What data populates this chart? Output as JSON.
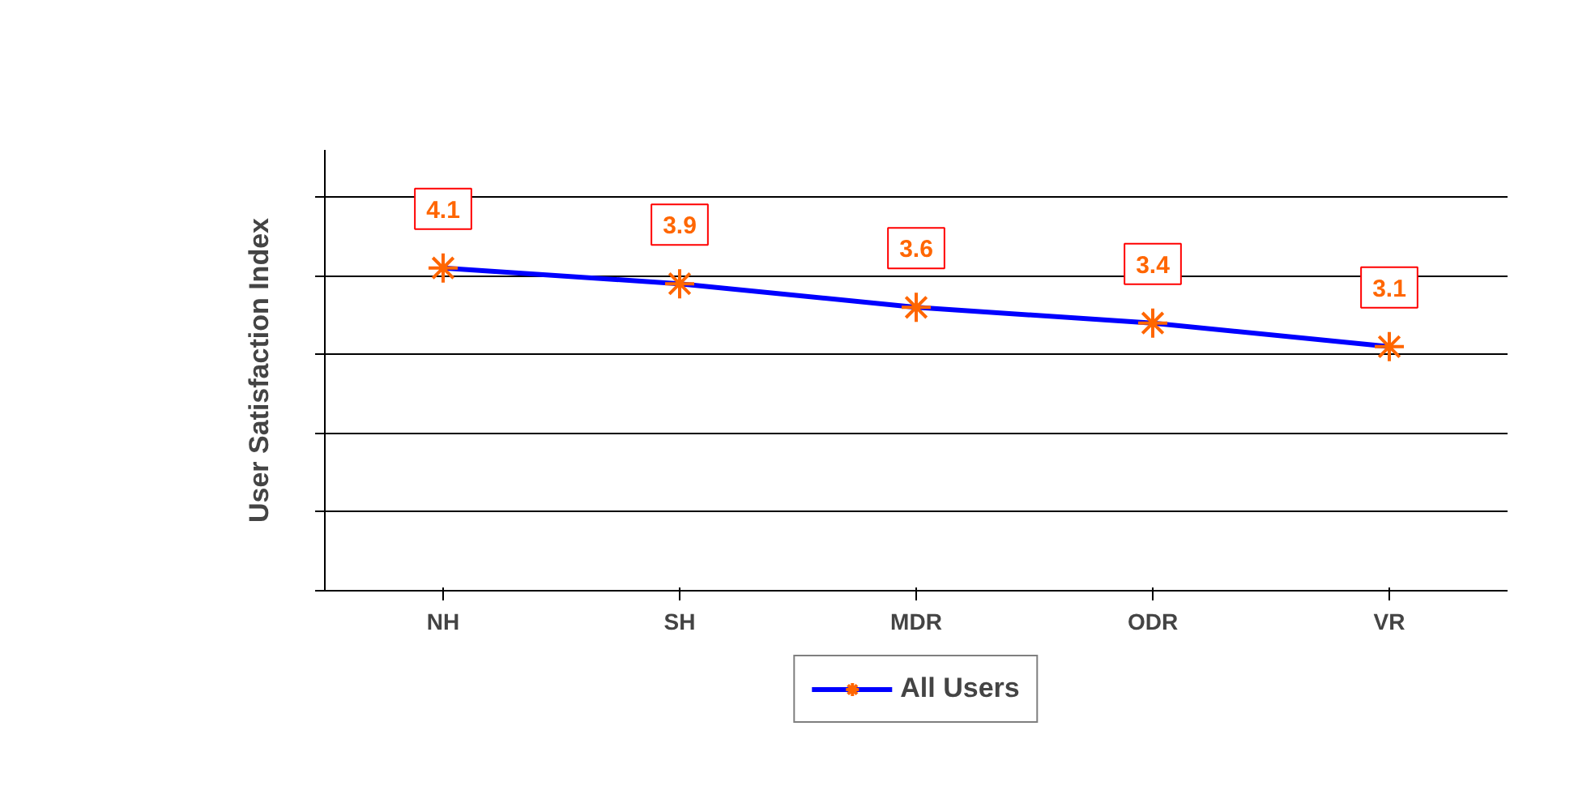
{
  "chart_data": {
    "type": "line",
    "ylabel": "User Satisfaction Index",
    "categories": [
      "NH",
      "SH",
      "MDR",
      "ODR",
      "VR"
    ],
    "series": [
      {
        "name": "All Users",
        "color": "#0000ff",
        "values": [
          4.1,
          3.9,
          3.6,
          3.4,
          3.1
        ]
      }
    ],
    "ylim": [
      0,
      5.6
    ],
    "yticks": [
      {
        "value": 0,
        "label": null
      },
      {
        "value": 1,
        "label": null
      },
      {
        "value": 2,
        "label": null
      },
      {
        "value": 3,
        "label": null
      },
      {
        "value": 4,
        "label": null
      },
      {
        "value": 5,
        "label": null
      }
    ],
    "tick_labels": "x",
    "grid": "y",
    "legend": "bottom",
    "marker": "cross",
    "line_style": "solid",
    "data_labels": true
  }
}
